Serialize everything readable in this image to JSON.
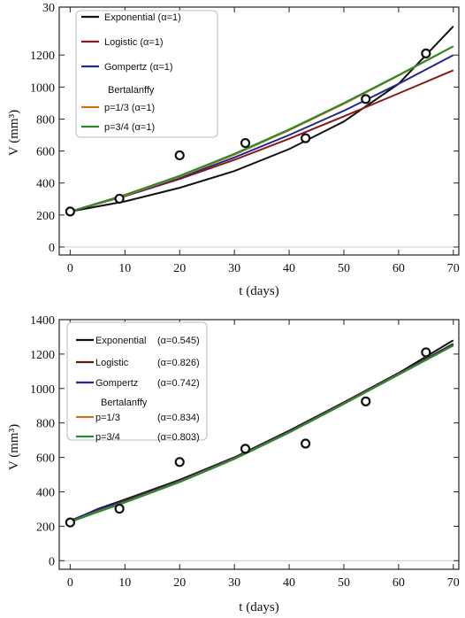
{
  "chart_data": [
    {
      "type": "line",
      "xlabel": "t (days)",
      "ylabel": "V (mm³)",
      "xlim": [
        -2,
        71
      ],
      "ylim": [
        -50,
        1500
      ],
      "top_tick_label": "30",
      "x_ticks": [
        "0",
        "10",
        "20",
        "30",
        "40",
        "50",
        "60",
        "70"
      ],
      "y_ticks": [
        "0",
        "200",
        "400",
        "600",
        "800",
        "1000",
        "1200"
      ],
      "legend": {
        "entries": [
          {
            "label": "Exponential (α=1)",
            "color": "#111111"
          },
          {
            "label": "Logistic (α=1)",
            "color": "#8b1a1a"
          },
          {
            "label": "Gompertz (α=1)",
            "color": "#1f2a8a"
          },
          {
            "header": "Bertalanffy"
          },
          {
            "label": "p=1/3  (α=1)",
            "color": "#c8761e"
          },
          {
            "label": "p=3/4    (α=1)",
            "color": "#2a8a2a"
          }
        ]
      },
      "observed": {
        "x": [
          0,
          9,
          20,
          32,
          43,
          54,
          65
        ],
        "y": [
          222,
          302,
          573,
          650,
          680,
          925,
          1210
        ]
      },
      "series": [
        {
          "name": "Exponential",
          "color": "#111111",
          "x": [
            0,
            10,
            20,
            30,
            40,
            50,
            60,
            70
          ],
          "y": [
            222,
            285,
            370,
            475,
            612,
            785,
            1020,
            1380
          ]
        },
        {
          "name": "Logistic",
          "color": "#8b1a1a",
          "x": [
            0,
            10,
            20,
            30,
            40,
            50,
            60,
            70
          ],
          "y": [
            222,
            318,
            425,
            545,
            677,
            817,
            960,
            1105
          ]
        },
        {
          "name": "Gompertz",
          "color": "#1f2a8a",
          "x": [
            0,
            10,
            20,
            30,
            40,
            50,
            60,
            70
          ],
          "y": [
            222,
            320,
            432,
            560,
            700,
            852,
            1020,
            1200
          ]
        },
        {
          "name": "Bertalanffy p=1/3",
          "color": "#c8761e",
          "x": [
            0,
            10,
            20,
            30,
            40,
            50,
            60,
            70
          ],
          "y": [
            222,
            322,
            440,
            577,
            730,
            895,
            1072,
            1255
          ]
        },
        {
          "name": "Bertalanffy p=3/4",
          "color": "#2a8a2a",
          "x": [
            0,
            10,
            20,
            30,
            40,
            50,
            60,
            70
          ],
          "y": [
            222,
            326,
            445,
            582,
            735,
            900,
            1075,
            1255
          ]
        }
      ]
    },
    {
      "type": "line",
      "xlabel": "t (days)",
      "ylabel": "V (mm³)",
      "xlim": [
        -2,
        71
      ],
      "ylim": [
        -50,
        1400
      ],
      "x_ticks": [
        "0",
        "10",
        "20",
        "30",
        "40",
        "50",
        "60",
        "70"
      ],
      "y_ticks": [
        "0",
        "200",
        "400",
        "600",
        "800",
        "1000",
        "1200",
        "1400"
      ],
      "legend": {
        "entries": [
          {
            "label": "Exponential",
            "param": "(α=0.545)",
            "color": "#111111"
          },
          {
            "label": "Logistic",
            "param": "(α=0.826)",
            "color": "#5a1a0a"
          },
          {
            "label": "Gompertz",
            "param": "(α=0.742)",
            "color": "#1f2a8a"
          },
          {
            "header": "Bertalanffy"
          },
          {
            "label": "p=1/3",
            "param": "(α=0.834)",
            "color": "#c8761e"
          },
          {
            "label": "p=3/4",
            "param": "(α=0.803)",
            "color": "#2a8a2a"
          }
        ]
      },
      "observed": {
        "x": [
          0,
          9,
          20,
          32,
          43,
          54,
          65
        ],
        "y": [
          222,
          302,
          573,
          650,
          680,
          925,
          1210
        ]
      },
      "series": [
        {
          "name": "Exponential",
          "color": "#111111",
          "x": [
            0,
            5,
            10,
            20,
            30,
            40,
            50,
            60,
            70
          ],
          "y": [
            228,
            300,
            355,
            470,
            600,
            755,
            920,
            1090,
            1280
          ]
        },
        {
          "name": "Logistic",
          "color": "#5a1a0a",
          "x": [
            0,
            5,
            10,
            20,
            30,
            40,
            50,
            60,
            70
          ],
          "y": [
            228,
            295,
            350,
            465,
            598,
            752,
            918,
            1085,
            1260
          ]
        },
        {
          "name": "Gompertz",
          "color": "#1f2a8a",
          "x": [
            0,
            5,
            10,
            20,
            30,
            40,
            50,
            60,
            70
          ],
          "y": [
            232,
            298,
            345,
            462,
            596,
            750,
            915,
            1085,
            1255
          ]
        },
        {
          "name": "Bertalanffy p=1/3",
          "color": "#c8761e",
          "x": [
            0,
            5,
            10,
            20,
            30,
            40,
            50,
            60,
            70
          ],
          "y": [
            226,
            285,
            340,
            458,
            592,
            745,
            912,
            1082,
            1250
          ]
        },
        {
          "name": "Bertalanffy p=3/4",
          "color": "#2a8a2a",
          "x": [
            0,
            5,
            10,
            20,
            30,
            40,
            50,
            60,
            70
          ],
          "y": [
            225,
            282,
            338,
            456,
            590,
            744,
            910,
            1080,
            1250
          ]
        }
      ]
    }
  ]
}
